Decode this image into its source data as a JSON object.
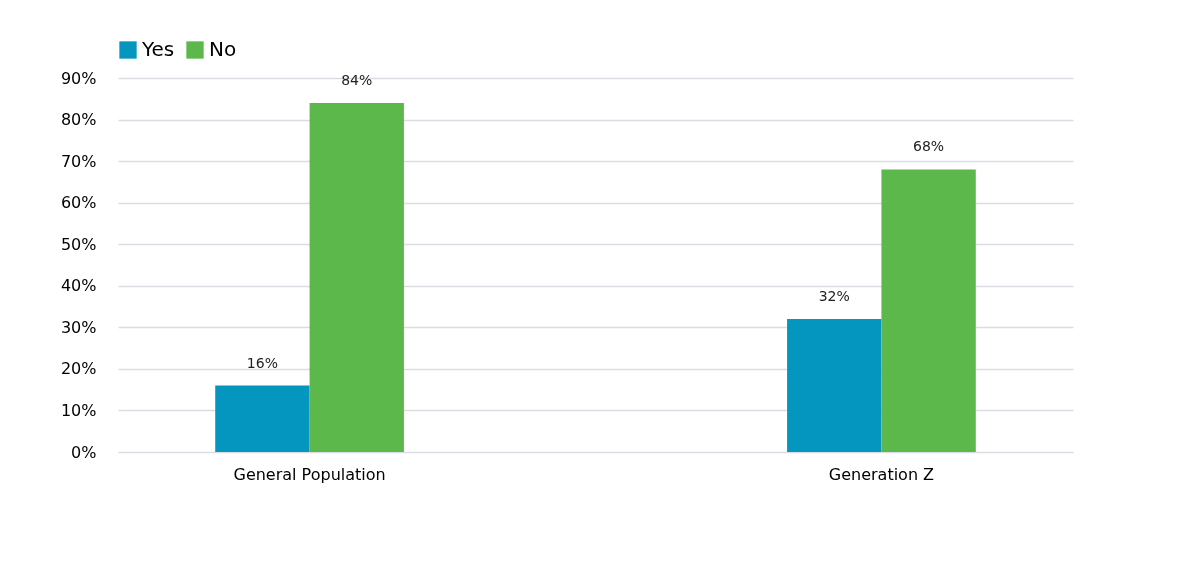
{
  "chart_data": {
    "type": "bar",
    "categories": [
      "General Population",
      "Generation Z"
    ],
    "series": [
      {
        "name": "Yes",
        "color": "#0596c0",
        "values": [
          16,
          32
        ],
        "value_labels": [
          "16%",
          "32%"
        ]
      },
      {
        "name": "No",
        "color": "#5cb84a",
        "values": [
          84,
          68
        ],
        "value_labels": [
          "84%",
          "68%"
        ]
      }
    ],
    "ylim": [
      0,
      90
    ],
    "yticks": [
      {
        "value": 0,
        "label": "0%"
      },
      {
        "value": 10,
        "label": "10%"
      },
      {
        "value": 20,
        "label": "20%"
      },
      {
        "value": 30,
        "label": "30%"
      },
      {
        "value": 40,
        "label": "40%"
      },
      {
        "value": 50,
        "label": "50%"
      },
      {
        "value": 60,
        "label": "60%"
      },
      {
        "value": 70,
        "label": "70%"
      },
      {
        "value": 80,
        "label": "80%"
      },
      {
        "value": 90,
        "label": "90%"
      }
    ],
    "grid": "y",
    "legend": "top"
  }
}
